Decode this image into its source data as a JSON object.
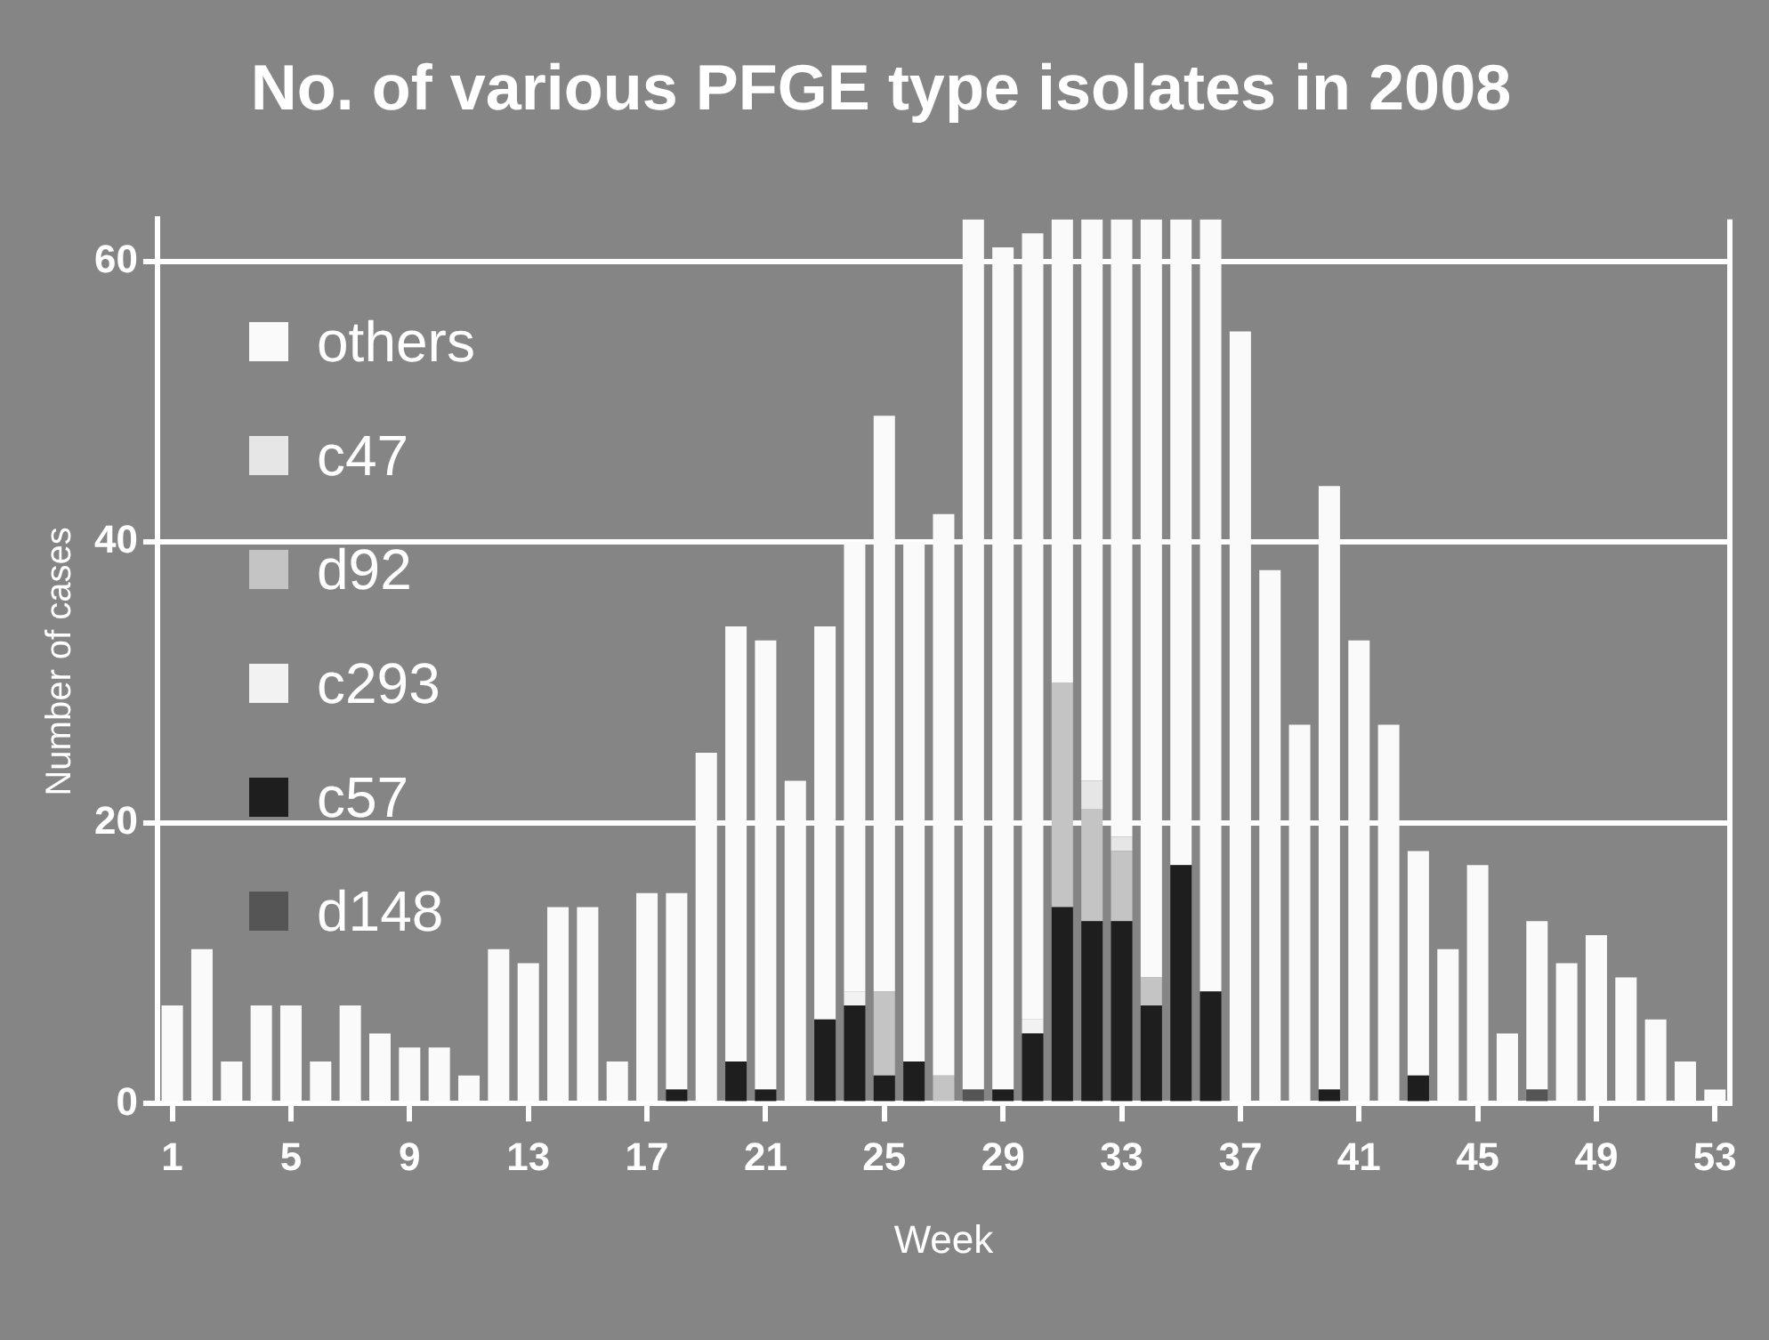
{
  "chart_data": {
    "type": "bar",
    "title": "No. of various PFGE type isolates in 2008",
    "xlabel": "Week",
    "ylabel": "Number of cases",
    "categories": [
      "1",
      null,
      null,
      null,
      "5",
      null,
      null,
      null,
      "9",
      null,
      null,
      null,
      "13",
      null,
      null,
      null,
      "17",
      null,
      null,
      null,
      "21",
      null,
      null,
      null,
      "25",
      null,
      null,
      null,
      "29",
      null,
      null,
      null,
      "33",
      null,
      null,
      null,
      "37",
      null,
      null,
      null,
      "41",
      null,
      null,
      null,
      "45",
      null,
      null,
      null,
      "49",
      null,
      null,
      null,
      "53"
    ],
    "stacked": true,
    "ylim": [
      0,
      63
    ],
    "yticks": [
      0,
      20,
      40,
      60
    ],
    "grid": "y",
    "legend": "top left",
    "series": [
      {
        "name": "d148",
        "color": "#555555",
        "values": [
          0,
          0,
          0,
          0,
          0,
          0,
          0,
          0,
          0,
          0,
          0,
          0,
          0,
          0,
          0,
          0,
          0,
          0,
          0,
          0,
          0,
          0,
          0,
          0,
          0,
          0,
          0,
          1,
          0,
          0,
          0,
          0,
          0,
          0,
          0,
          0,
          0,
          0,
          0,
          0,
          0,
          0,
          0,
          0,
          0,
          0,
          1,
          0,
          0,
          0,
          0,
          0,
          0
        ]
      },
      {
        "name": "c57",
        "color": "#1e1e1e",
        "values": [
          0,
          0,
          0,
          0,
          0,
          0,
          0,
          0,
          0,
          0,
          0,
          0,
          0,
          0,
          0,
          0,
          0,
          1,
          0,
          3,
          1,
          0,
          6,
          7,
          2,
          3,
          0,
          0,
          1,
          5,
          14,
          13,
          13,
          7,
          17,
          8,
          0,
          0,
          0,
          1,
          0,
          0,
          2,
          0,
          0,
          0,
          0,
          0,
          0,
          0,
          0,
          0,
          0
        ]
      },
      {
        "name": "c293",
        "color": "#f2f2f2",
        "values": [
          0,
          0,
          0,
          0,
          0,
          0,
          0,
          0,
          0,
          0,
          0,
          0,
          0,
          0,
          0,
          0,
          0,
          0,
          0,
          0,
          0,
          0,
          0,
          1,
          0,
          0,
          0,
          0,
          0,
          1,
          0,
          0,
          0,
          0,
          0,
          0,
          0,
          0,
          0,
          0,
          0,
          0,
          0,
          0,
          0,
          0,
          0,
          0,
          0,
          0,
          0,
          0,
          0
        ]
      },
      {
        "name": "d92",
        "color": "#c4c4c4",
        "values": [
          0,
          0,
          0,
          0,
          0,
          0,
          0,
          0,
          0,
          0,
          0,
          0,
          0,
          0,
          0,
          0,
          0,
          0,
          0,
          0,
          0,
          0,
          0,
          0,
          6,
          0,
          2,
          0,
          0,
          0,
          16,
          8,
          5,
          2,
          0,
          0,
          0,
          0,
          0,
          0,
          0,
          0,
          0,
          0,
          0,
          0,
          0,
          0,
          0,
          0,
          0,
          0,
          0
        ]
      },
      {
        "name": "c47",
        "color": "#e6e6e6",
        "values": [
          0,
          0,
          0,
          0,
          0,
          0,
          0,
          0,
          0,
          0,
          0,
          0,
          0,
          0,
          0,
          0,
          0,
          0,
          0,
          0,
          0,
          0,
          0,
          0,
          0,
          0,
          0,
          0,
          0,
          0,
          0,
          2,
          1,
          0,
          0,
          0,
          0,
          0,
          0,
          0,
          0,
          0,
          0,
          0,
          0,
          0,
          0,
          0,
          0,
          0,
          0,
          0,
          0
        ]
      },
      {
        "name": "others",
        "color": "#fafafa",
        "values": [
          7,
          11,
          3,
          7,
          7,
          3,
          7,
          5,
          4,
          4,
          2,
          11,
          10,
          14,
          14,
          3,
          15,
          14,
          25,
          31,
          32,
          23,
          28,
          32,
          41,
          37,
          40,
          62,
          60,
          56,
          33,
          40,
          44,
          54,
          46,
          55,
          55,
          38,
          27,
          43,
          33,
          27,
          16,
          11,
          17,
          5,
          12,
          10,
          12,
          9,
          6,
          3,
          1
        ]
      }
    ]
  }
}
